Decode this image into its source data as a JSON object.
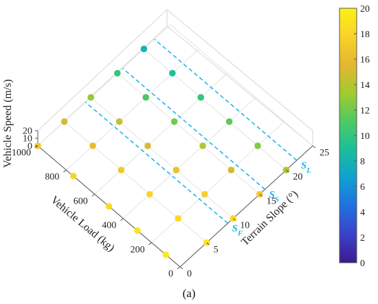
{
  "chart_data": {
    "type": "scatter3d",
    "x_axis": {
      "label": "Terrain Slope (°)",
      "ticks": [
        "0",
        "5",
        "10",
        "15",
        "20",
        "25"
      ],
      "range": [
        0,
        25
      ]
    },
    "y_axis": {
      "label": "Vehicle Load (kg)",
      "ticks": [
        "0",
        "200",
        "400",
        "600",
        "800",
        "1000"
      ],
      "range": [
        0,
        1000
      ]
    },
    "z_axis": {
      "label": "Vehicle Speed (m/s)",
      "ticks": [
        "0",
        "10",
        "20"
      ],
      "range": [
        0,
        20
      ]
    },
    "colorbar": {
      "ticks": [
        "0",
        "2",
        "4",
        "6",
        "8",
        "10",
        "12",
        "14",
        "16",
        "18",
        "20"
      ],
      "range": [
        0,
        20
      ],
      "colormap": [
        "#3e1a8f",
        "#3b41c9",
        "#2070e0",
        "#10a0d2",
        "#1abf9a",
        "#4dca62",
        "#a2ca2f",
        "#e4b630",
        "#f9d22a",
        "#faf214"
      ]
    },
    "boundary_lines": [
      {
        "label_main": "S",
        "label_sub": "F",
        "slope": 9
      },
      {
        "label_main": "S",
        "label_sub": "S",
        "slope": 16
      },
      {
        "label_main": "S",
        "label_sub": "L",
        "slope": 22
      }
    ],
    "points": [
      {
        "slope": 0,
        "load": 100,
        "color_value": 19.5
      },
      {
        "slope": 0,
        "load": 300,
        "color_value": 19
      },
      {
        "slope": 0,
        "load": 500,
        "color_value": 18.5
      },
      {
        "slope": 0,
        "load": 750,
        "color_value": 18
      },
      {
        "slope": 0,
        "load": 1000,
        "color_value": 17
      },
      {
        "slope": 5,
        "load": 0,
        "color_value": 19
      },
      {
        "slope": 5,
        "load": 200,
        "color_value": 18.5
      },
      {
        "slope": 5,
        "load": 400,
        "color_value": 18
      },
      {
        "slope": 5,
        "load": 600,
        "color_value": 17
      },
      {
        "slope": 5,
        "load": 800,
        "color_value": 16
      },
      {
        "slope": 5,
        "load": 1000,
        "color_value": 15
      },
      {
        "slope": 10,
        "load": 0,
        "color_value": 18.5
      },
      {
        "slope": 10,
        "load": 200,
        "color_value": 17.5
      },
      {
        "slope": 10,
        "load": 400,
        "color_value": 16.5
      },
      {
        "slope": 10,
        "load": 600,
        "color_value": 15
      },
      {
        "slope": 10,
        "load": 800,
        "color_value": 14.5
      },
      {
        "slope": 10,
        "load": 1000,
        "color_value": 13
      },
      {
        "slope": 15,
        "load": 0,
        "color_value": 17
      },
      {
        "slope": 15,
        "load": 200,
        "color_value": 15
      },
      {
        "slope": 15,
        "load": 400,
        "color_value": 14
      },
      {
        "slope": 15,
        "load": 600,
        "color_value": 12
      },
      {
        "slope": 15,
        "load": 800,
        "color_value": 11
      },
      {
        "slope": 15,
        "load": 1000,
        "color_value": 10
      },
      {
        "slope": 20,
        "load": 0,
        "color_value": 14
      },
      {
        "slope": 20,
        "load": 200,
        "color_value": 12.5
      },
      {
        "slope": 20,
        "load": 400,
        "color_value": 11.5
      },
      {
        "slope": 20,
        "load": 600,
        "color_value": 10
      },
      {
        "slope": 20,
        "load": 800,
        "color_value": 9
      },
      {
        "slope": 20,
        "load": 1000,
        "color_value": 8
      }
    ]
  },
  "caption": "(a)"
}
